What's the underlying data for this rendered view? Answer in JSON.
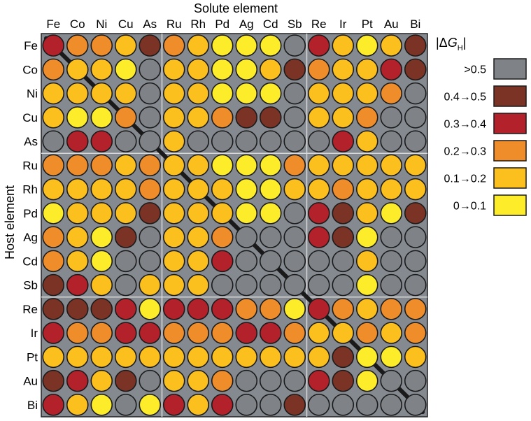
{
  "chart_data": {
    "type": "heatmap",
    "title": "",
    "xlabel": "Solute element",
    "ylabel": "Host element",
    "x": [
      "Fe",
      "Co",
      "Ni",
      "Cu",
      "As",
      "Ru",
      "Rh",
      "Pd",
      "Ag",
      "Cd",
      "Sb",
      "Re",
      "Ir",
      "Pt",
      "Au",
      "Bi"
    ],
    "y": [
      "Fe",
      "Co",
      "Ni",
      "Cu",
      "As",
      "Ru",
      "Rh",
      "Pd",
      "Ag",
      "Cd",
      "Sb",
      "Re",
      "Ir",
      "Pt",
      "Au",
      "Bi"
    ],
    "legend": {
      "title_prefix": "|Δ",
      "title_var": "G",
      "title_sub": "H",
      "title_suffix": "|",
      "placement": "right",
      "bins": [
        {
          "label": ">0.5",
          "color": "#7f8388"
        },
        {
          "label": "0.4→0.5",
          "color": "#7a3324"
        },
        {
          "label": "0.3→0.4",
          "color": "#b3212a"
        },
        {
          "label": "0.2→0.3",
          "color": "#ef8d2b"
        },
        {
          "label": "0.1→0.2",
          "color": "#fcc01e"
        },
        {
          "label": "0→0.1",
          "color": "#fcec2a"
        }
      ]
    },
    "bin_index_key": "0 = >0.5, 1 = 0.4→0.5, 2 = 0.3→0.4, 3 = 0.2→0.3, 4 = 0.1→0.2, 5 = 0→0.1",
    "grid_separators_after": [
      4,
      10
    ],
    "diagonal_line": true,
    "values": [
      [
        2,
        3,
        3,
        4,
        1,
        3,
        4,
        5,
        5,
        5,
        0,
        2,
        4,
        5,
        4,
        1
      ],
      [
        3,
        4,
        4,
        5,
        0,
        4,
        4,
        5,
        5,
        4,
        1,
        3,
        4,
        4,
        2,
        1
      ],
      [
        4,
        4,
        4,
        4,
        0,
        4,
        4,
        5,
        5,
        5,
        0,
        4,
        4,
        4,
        3,
        0
      ],
      [
        4,
        5,
        5,
        3,
        0,
        4,
        4,
        3,
        1,
        1,
        0,
        4,
        4,
        3,
        0,
        0
      ],
      [
        0,
        2,
        2,
        0,
        0,
        4,
        0,
        0,
        0,
        0,
        0,
        0,
        2,
        4,
        0,
        0
      ],
      [
        3,
        3,
        3,
        4,
        3,
        4,
        4,
        5,
        5,
        5,
        3,
        4,
        4,
        4,
        4,
        4
      ],
      [
        4,
        4,
        4,
        4,
        3,
        4,
        4,
        4,
        5,
        5,
        4,
        4,
        3,
        4,
        4,
        4
      ],
      [
        5,
        4,
        4,
        4,
        1,
        4,
        4,
        4,
        5,
        5,
        0,
        2,
        1,
        4,
        5,
        1
      ],
      [
        3,
        4,
        5,
        1,
        0,
        4,
        4,
        3,
        0,
        0,
        0,
        2,
        1,
        5,
        0,
        0
      ],
      [
        3,
        4,
        5,
        0,
        0,
        4,
        4,
        2,
        0,
        0,
        0,
        0,
        0,
        4,
        0,
        0
      ],
      [
        1,
        2,
        4,
        0,
        4,
        4,
        4,
        0,
        0,
        0,
        0,
        0,
        0,
        5,
        0,
        0
      ],
      [
        1,
        1,
        1,
        2,
        5,
        2,
        2,
        2,
        3,
        3,
        5,
        2,
        3,
        4,
        3,
        3
      ],
      [
        2,
        3,
        3,
        2,
        2,
        3,
        3,
        3,
        2,
        2,
        3,
        4,
        4,
        3,
        4,
        3
      ],
      [
        4,
        4,
        4,
        4,
        4,
        4,
        4,
        4,
        4,
        4,
        4,
        4,
        1,
        5,
        5,
        4
      ],
      [
        1,
        2,
        4,
        1,
        0,
        4,
        4,
        3,
        0,
        0,
        0,
        2,
        1,
        5,
        0,
        0
      ],
      [
        2,
        4,
        5,
        0,
        5,
        2,
        4,
        2,
        0,
        0,
        1,
        0,
        0,
        0,
        0,
        0
      ]
    ]
  }
}
